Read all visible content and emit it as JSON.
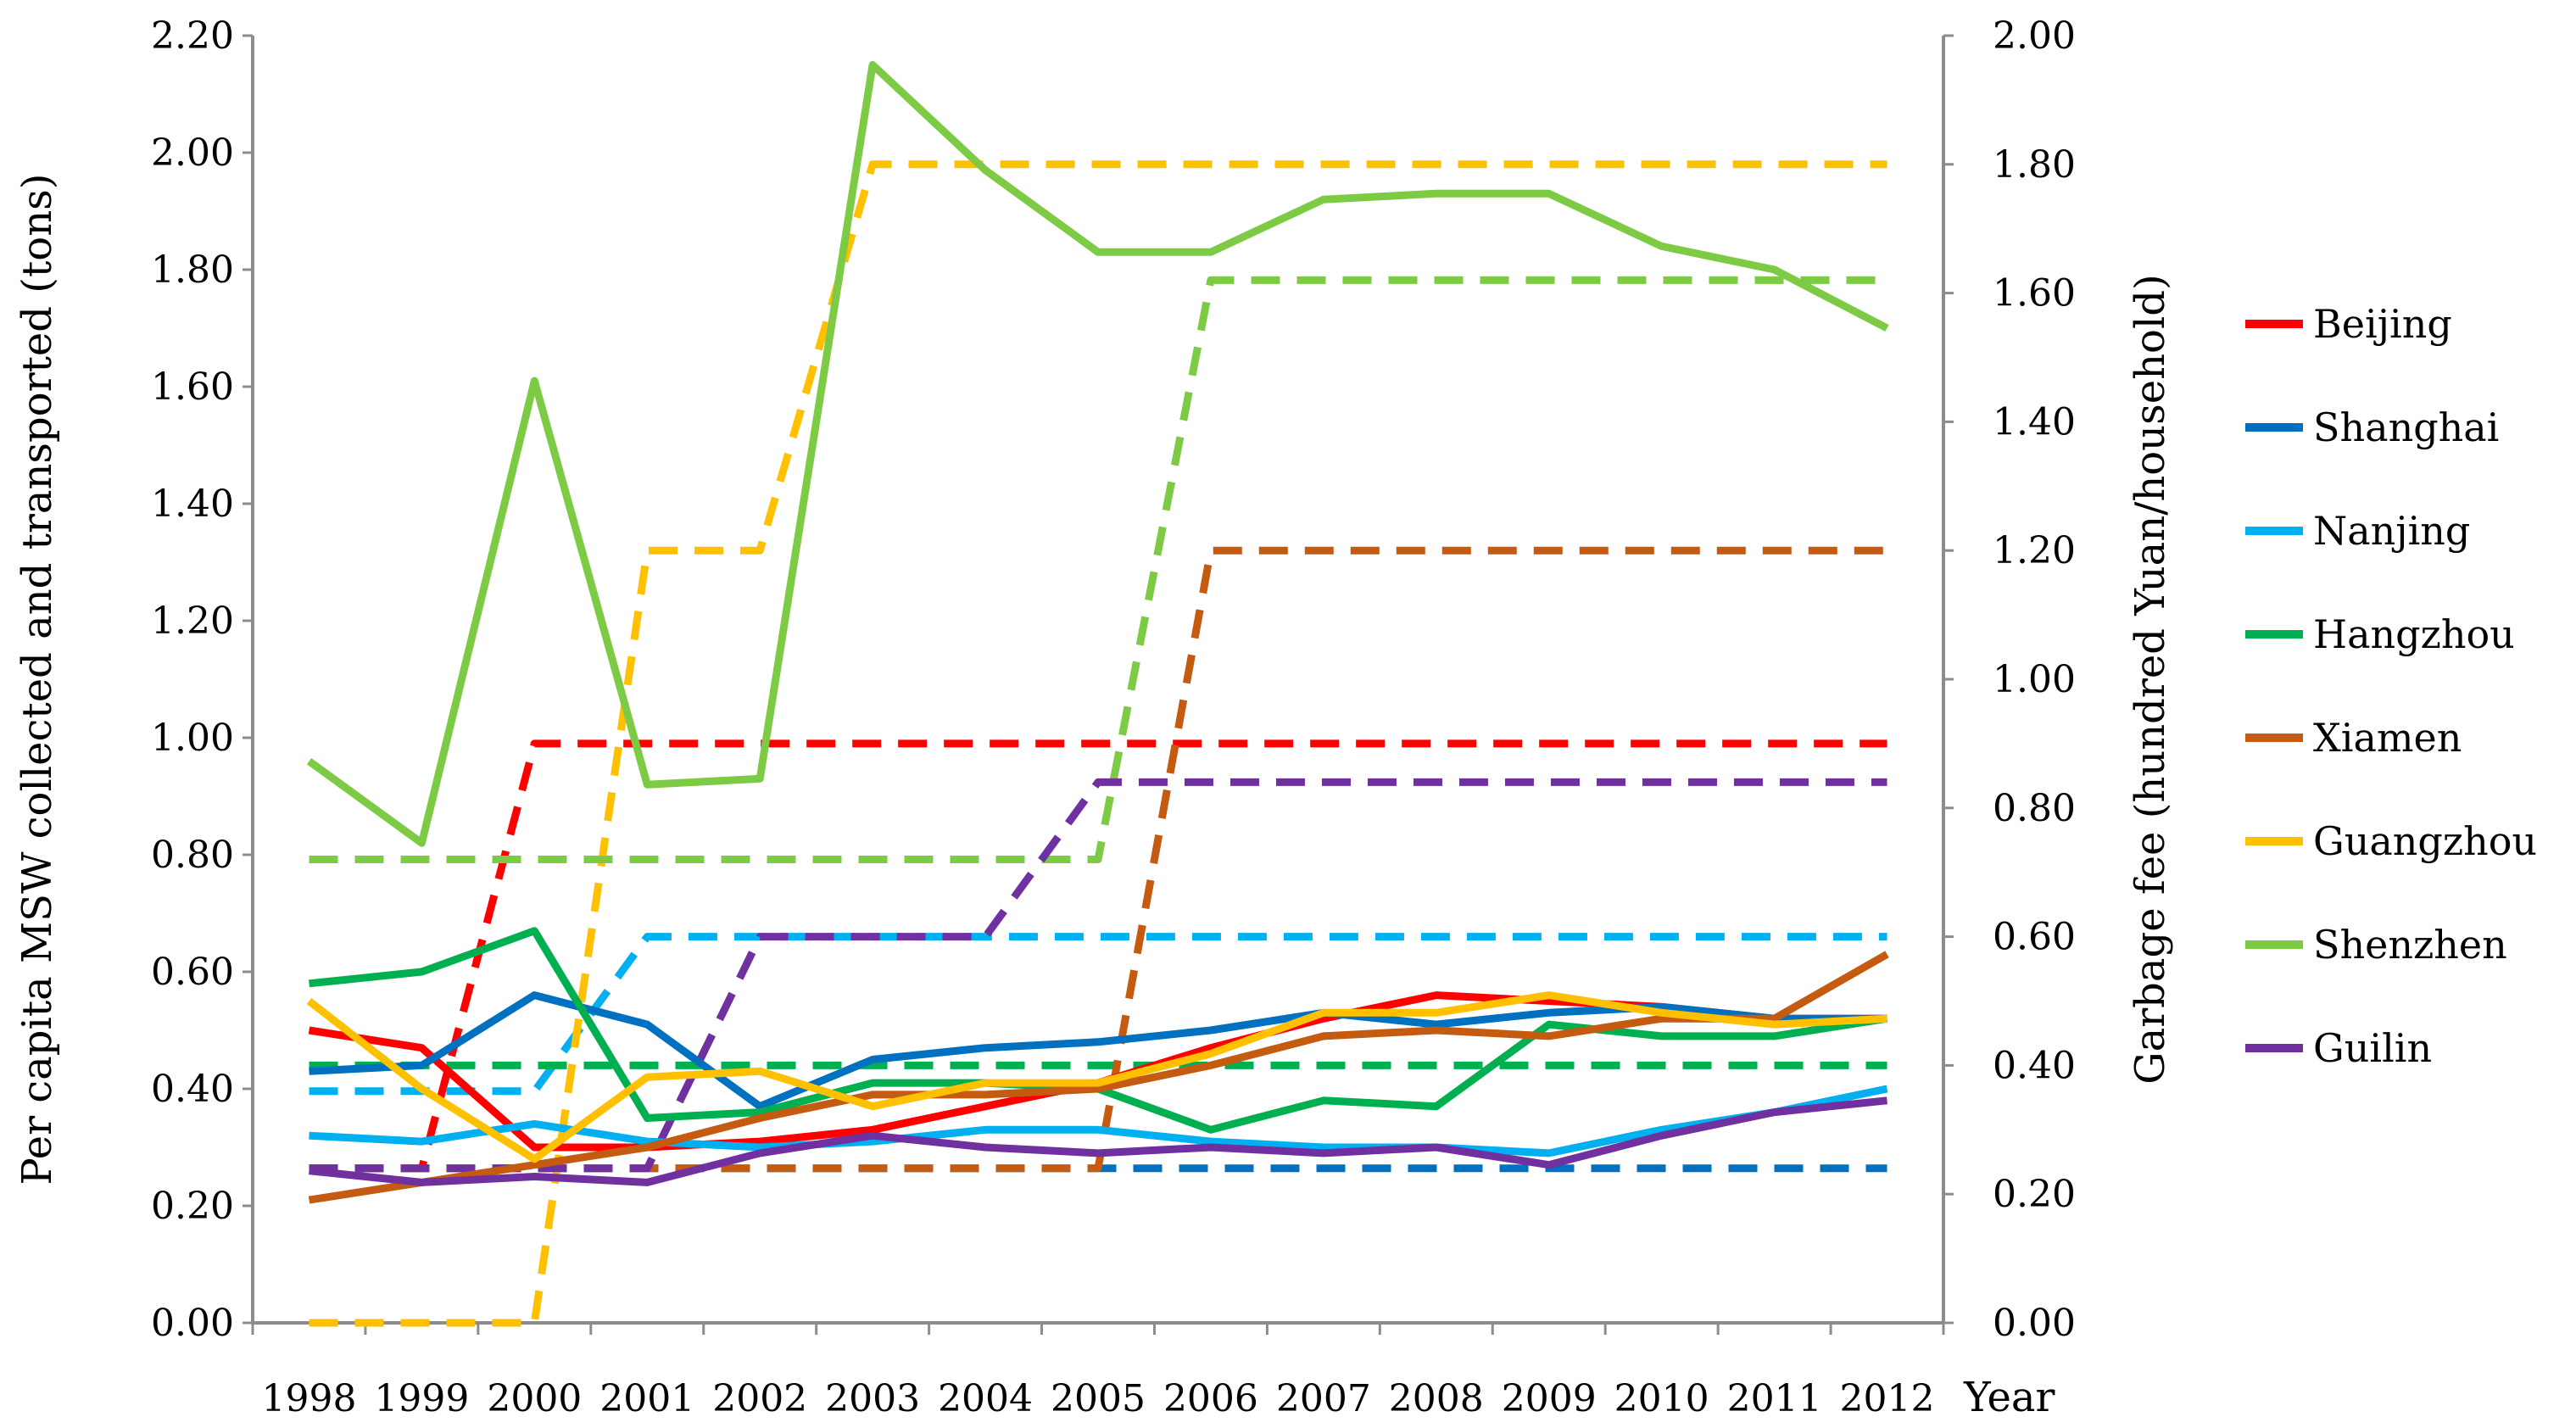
{
  "chart_data": {
    "type": "line",
    "title": "",
    "xlabel": "Year",
    "ylabel_left": "Per capita MSW collected and transported (tons)",
    "ylabel_right": "Garbage fee (hundred Yuan/household)",
    "ylim_left": [
      0,
      2.2
    ],
    "ylim_right": [
      0,
      2.0
    ],
    "yticks_left": [
      "0.00",
      "0.20",
      "0.40",
      "0.60",
      "0.80",
      "1.00",
      "1.20",
      "1.40",
      "1.60",
      "1.80",
      "2.00",
      "2.20"
    ],
    "yticks_right": [
      "0.00",
      "0.20",
      "0.40",
      "0.60",
      "0.80",
      "1.00",
      "1.20",
      "1.40",
      "1.60",
      "1.80",
      "2.00"
    ],
    "categories": [
      "1998",
      "1999",
      "2000",
      "2001",
      "2002",
      "2003",
      "2004",
      "2005",
      "2006",
      "2007",
      "2008",
      "2009",
      "2010",
      "2011",
      "2012"
    ],
    "legend_position": "right",
    "series": [
      {
        "name": "Beijing",
        "color": "#ff0000",
        "msw": [
          0.5,
          0.47,
          0.3,
          0.3,
          0.31,
          0.33,
          0.37,
          0.41,
          0.47,
          0.52,
          0.56,
          0.55,
          0.54,
          0.52,
          0.52
        ],
        "fee": [
          0.24,
          0.24,
          0.9,
          0.9,
          0.9,
          0.9,
          0.9,
          0.9,
          0.9,
          0.9,
          0.9,
          0.9,
          0.9,
          0.9,
          0.9
        ]
      },
      {
        "name": "Shanghai",
        "color": "#0070c0",
        "msw": [
          0.43,
          0.44,
          0.56,
          0.51,
          0.37,
          0.45,
          0.47,
          0.48,
          0.5,
          0.53,
          0.51,
          0.53,
          0.54,
          0.52,
          0.52
        ],
        "fee": [
          0.24,
          0.24,
          0.24,
          0.24,
          0.24,
          0.24,
          0.24,
          0.24,
          0.24,
          0.24,
          0.24,
          0.24,
          0.24,
          0.24,
          0.24
        ]
      },
      {
        "name": "Nanjing",
        "color": "#00b0f0",
        "msw": [
          0.32,
          0.31,
          0.34,
          0.31,
          0.3,
          0.31,
          0.33,
          0.33,
          0.31,
          0.3,
          0.3,
          0.29,
          0.33,
          0.36,
          0.4
        ],
        "fee": [
          0.36,
          0.36,
          0.36,
          0.6,
          0.6,
          0.6,
          0.6,
          0.6,
          0.6,
          0.6,
          0.6,
          0.6,
          0.6,
          0.6,
          0.6
        ]
      },
      {
        "name": "Hangzhou",
        "color": "#00b050",
        "msw": [
          0.58,
          0.6,
          0.67,
          0.35,
          0.36,
          0.41,
          0.41,
          0.4,
          0.33,
          0.38,
          0.37,
          0.51,
          0.49,
          0.49,
          0.52
        ],
        "fee": [
          0.4,
          0.4,
          0.4,
          0.4,
          0.4,
          0.4,
          0.4,
          0.4,
          0.4,
          0.4,
          0.4,
          0.4,
          0.4,
          0.4,
          0.4
        ]
      },
      {
        "name": "Xiamen",
        "color": "#c55a11",
        "msw": [
          0.21,
          0.24,
          0.27,
          0.3,
          0.35,
          0.39,
          0.39,
          0.4,
          0.44,
          0.49,
          0.5,
          0.49,
          0.52,
          0.52,
          0.63
        ],
        "fee": [
          0.24,
          0.24,
          0.24,
          0.24,
          0.24,
          0.24,
          0.24,
          0.24,
          1.2,
          1.2,
          1.2,
          1.2,
          1.2,
          1.2,
          1.2
        ]
      },
      {
        "name": "Guangzhou",
        "color": "#ffc000",
        "msw": [
          0.55,
          0.4,
          0.28,
          0.42,
          0.43,
          0.37,
          0.41,
          0.41,
          0.46,
          0.53,
          0.53,
          0.56,
          0.53,
          0.51,
          0.52
        ],
        "fee": [
          0.0,
          0.0,
          0.0,
          1.2,
          1.2,
          1.8,
          1.8,
          1.8,
          1.8,
          1.8,
          1.8,
          1.8,
          1.8,
          1.8,
          1.8
        ]
      },
      {
        "name": "Shenzhen",
        "color": "#7dcb44",
        "msw": [
          0.96,
          0.82,
          1.61,
          0.92,
          0.93,
          2.15,
          1.97,
          1.83,
          1.83,
          1.92,
          1.93,
          1.93,
          1.84,
          1.8,
          1.7
        ],
        "fee": [
          0.72,
          0.72,
          0.72,
          0.72,
          0.72,
          0.72,
          0.72,
          0.72,
          1.62,
          1.62,
          1.62,
          1.62,
          1.62,
          1.62,
          1.62
        ]
      },
      {
        "name": "Guilin",
        "color": "#7030a0",
        "msw": [
          0.26,
          0.24,
          0.25,
          0.24,
          0.29,
          0.32,
          0.3,
          0.29,
          0.3,
          0.29,
          0.3,
          0.27,
          0.32,
          0.36,
          0.38
        ],
        "fee": [
          0.24,
          0.24,
          0.24,
          0.24,
          0.6,
          0.6,
          0.6,
          0.84,
          0.84,
          0.84,
          0.84,
          0.84,
          0.84,
          0.84,
          0.84
        ]
      }
    ]
  }
}
